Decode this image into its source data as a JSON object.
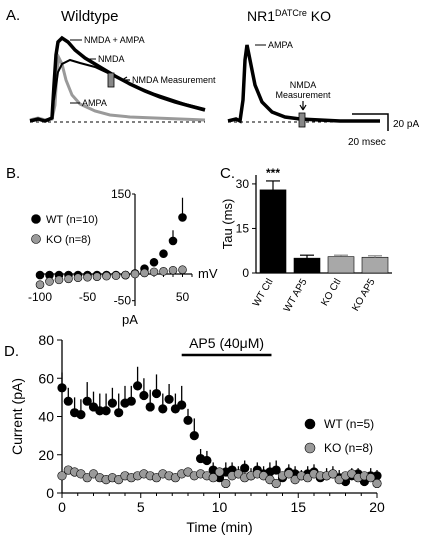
{
  "panels": {
    "a": {
      "letter": "A.",
      "wt_title": "Wildtype",
      "ko_title_main": "NR1",
      "ko_title_sup": "DATCre",
      "ko_title_end": " KO",
      "label_nmda_ampa": "NMDA + AMPA",
      "label_nmda": "NMDA",
      "label_ampa": "AMPA",
      "label_nmda_meas": "NMDA Measurement",
      "label_ko_ampa": "AMPA",
      "label_ko_nmda_1": "NMDA",
      "label_ko_nmda_2": "Measurement",
      "scale_y": "20 pA",
      "scale_x": "20 msec"
    },
    "b": {
      "letter": "B."
    },
    "c": {
      "letter": "C.",
      "significance": "***"
    },
    "d": {
      "letter": "D.",
      "drug_label": "AP5 (40μM)"
    }
  },
  "colors": {
    "wt": "#000000",
    "ko": "#9a9a9a",
    "ko_bar": "#a8a8a8"
  },
  "chart_data": [
    {
      "panel": "B",
      "type": "scatter",
      "xlabel": "mV",
      "ylabel": "pA",
      "xlim": [
        -100,
        60
      ],
      "ylim": [
        -60,
        150
      ],
      "x_ticks": [
        -100,
        -50,
        50
      ],
      "y_ticks": [
        150,
        -50
      ],
      "legend_position": "left",
      "series": [
        {
          "name": "WT (n=10)",
          "color": "#000000",
          "points": [
            {
              "x": -100,
              "y": -2,
              "err": 0
            },
            {
              "x": -90,
              "y": -2,
              "err": 0
            },
            {
              "x": -80,
              "y": -2,
              "err": 0
            },
            {
              "x": -70,
              "y": -2,
              "err": 0
            },
            {
              "x": -60,
              "y": -2,
              "err": 0
            },
            {
              "x": -50,
              "y": -2,
              "err": 0
            },
            {
              "x": -40,
              "y": -2,
              "err": 0
            },
            {
              "x": -30,
              "y": -2,
              "err": 0
            },
            {
              "x": -20,
              "y": -2,
              "err": 0
            },
            {
              "x": -10,
              "y": -2,
              "err": 0
            },
            {
              "x": 0,
              "y": 1,
              "err": 0
            },
            {
              "x": 10,
              "y": 10,
              "err": 0
            },
            {
              "x": 20,
              "y": 22,
              "err": 0
            },
            {
              "x": 30,
              "y": 38,
              "err": 0
            },
            {
              "x": 40,
              "y": 62,
              "err": 20
            },
            {
              "x": 50,
              "y": 106,
              "err": 37
            }
          ]
        },
        {
          "name": "KO (n=8)",
          "color": "#9a9a9a",
          "points": [
            {
              "x": -100,
              "y": -20,
              "err": 4
            },
            {
              "x": -90,
              "y": -14,
              "err": 4
            },
            {
              "x": -80,
              "y": -11,
              "err": 3
            },
            {
              "x": -70,
              "y": -9,
              "err": 3
            },
            {
              "x": -60,
              "y": -7,
              "err": 2
            },
            {
              "x": -50,
              "y": -6,
              "err": 2
            },
            {
              "x": -40,
              "y": -5,
              "err": 2
            },
            {
              "x": -30,
              "y": -4,
              "err": 1
            },
            {
              "x": -20,
              "y": -3,
              "err": 1
            },
            {
              "x": -10,
              "y": -2,
              "err": 1
            },
            {
              "x": 0,
              "y": 0,
              "err": 0
            },
            {
              "x": 10,
              "y": 2,
              "err": 0
            },
            {
              "x": 20,
              "y": 4,
              "err": 0
            },
            {
              "x": 30,
              "y": 5,
              "err": 0
            },
            {
              "x": 40,
              "y": 7,
              "err": 0
            },
            {
              "x": 50,
              "y": 8,
              "err": 0
            }
          ]
        }
      ]
    },
    {
      "panel": "C",
      "type": "bar",
      "ylabel": "Tau (ms)",
      "ylim": [
        0,
        33
      ],
      "y_ticks": [
        0,
        15,
        30
      ],
      "categories": [
        "WT Ctl",
        "WT AP5",
        "KO Ctl",
        "KO AP5"
      ],
      "values": [
        28,
        5,
        5.5,
        5.3
      ],
      "errors": [
        3,
        1,
        0.5,
        0.5
      ],
      "colors": [
        "#000000",
        "#000000",
        "#a8a8a8",
        "#a8a8a8"
      ],
      "annotations": [
        {
          "category": "WT Ctl",
          "text": "***"
        }
      ]
    },
    {
      "panel": "D",
      "type": "scatter",
      "xlabel": "Time (min)",
      "ylabel": "Current (pA)",
      "xlim": [
        0,
        20
      ],
      "ylim": [
        0,
        80
      ],
      "x_ticks": [
        0,
        5,
        10,
        15,
        20
      ],
      "y_ticks": [
        0,
        20,
        40,
        60,
        80
      ],
      "drug_bar": {
        "start": 7.6,
        "end": 13.3,
        "label": "AP5 (40μM)"
      },
      "legend_position": "right",
      "series": [
        {
          "name": "WT (n=5)",
          "color": "#000000",
          "points": [
            {
              "x": 0.0,
              "y": 55,
              "err": 8
            },
            {
              "x": 0.4,
              "y": 48,
              "err": 7
            },
            {
              "x": 0.8,
              "y": 42,
              "err": 8
            },
            {
              "x": 1.2,
              "y": 41,
              "err": 8
            },
            {
              "x": 1.6,
              "y": 48,
              "err": 10
            },
            {
              "x": 2.0,
              "y": 45,
              "err": 8
            },
            {
              "x": 2.4,
              "y": 43,
              "err": 9
            },
            {
              "x": 2.8,
              "y": 43,
              "err": 9
            },
            {
              "x": 3.2,
              "y": 47,
              "err": 8
            },
            {
              "x": 3.6,
              "y": 42,
              "err": 10
            },
            {
              "x": 4.0,
              "y": 47,
              "err": 9
            },
            {
              "x": 4.4,
              "y": 48,
              "err": 8
            },
            {
              "x": 4.8,
              "y": 56,
              "err": 10
            },
            {
              "x": 5.2,
              "y": 51,
              "err": 9
            },
            {
              "x": 5.6,
              "y": 45,
              "err": 9
            },
            {
              "x": 6.0,
              "y": 52,
              "err": 10
            },
            {
              "x": 6.4,
              "y": 44,
              "err": 8
            },
            {
              "x": 6.8,
              "y": 49,
              "err": 8
            },
            {
              "x": 7.2,
              "y": 44,
              "err": 8
            },
            {
              "x": 7.6,
              "y": 46,
              "err": 10
            },
            {
              "x": 8.0,
              "y": 38,
              "err": 6
            },
            {
              "x": 8.4,
              "y": 30,
              "err": 9
            },
            {
              "x": 8.8,
              "y": 18,
              "err": 5
            },
            {
              "x": 9.2,
              "y": 17,
              "err": 5
            },
            {
              "x": 9.6,
              "y": 12,
              "err": 4
            },
            {
              "x": 10.0,
              "y": 8,
              "err": 4
            },
            {
              "x": 10.4,
              "y": 11,
              "err": 5
            },
            {
              "x": 10.8,
              "y": 12,
              "err": 4
            },
            {
              "x": 11.2,
              "y": 10,
              "err": 4
            },
            {
              "x": 11.6,
              "y": 13,
              "err": 4
            },
            {
              "x": 12.0,
              "y": 9,
              "err": 4
            },
            {
              "x": 12.4,
              "y": 12,
              "err": 4
            },
            {
              "x": 12.8,
              "y": 10,
              "err": 4
            },
            {
              "x": 13.2,
              "y": 11,
              "err": 5
            },
            {
              "x": 13.6,
              "y": 12,
              "err": 5
            },
            {
              "x": 14.0,
              "y": 8,
              "err": 3
            },
            {
              "x": 14.4,
              "y": 11,
              "err": 4
            },
            {
              "x": 14.8,
              "y": 10,
              "err": 4
            },
            {
              "x": 15.2,
              "y": 9,
              "err": 3
            },
            {
              "x": 15.6,
              "y": 10,
              "err": 4
            },
            {
              "x": 16.0,
              "y": 11,
              "err": 4
            },
            {
              "x": 16.4,
              "y": 8,
              "err": 3
            },
            {
              "x": 16.8,
              "y": 9,
              "err": 4
            },
            {
              "x": 17.2,
              "y": 10,
              "err": 4
            },
            {
              "x": 17.6,
              "y": 8,
              "err": 4
            },
            {
              "x": 18.0,
              "y": 6,
              "err": 3
            },
            {
              "x": 18.4,
              "y": 9,
              "err": 4
            },
            {
              "x": 18.8,
              "y": 10,
              "err": 3
            },
            {
              "x": 19.2,
              "y": 6,
              "err": 3
            },
            {
              "x": 19.6,
              "y": 9,
              "err": 4
            },
            {
              "x": 20.0,
              "y": 9,
              "err": 3
            }
          ]
        },
        {
          "name": "KO (n=8)",
          "color": "#9a9a9a",
          "points": [
            {
              "x": 0.0,
              "y": 9,
              "err": 2
            },
            {
              "x": 0.4,
              "y": 12,
              "err": 2
            },
            {
              "x": 0.8,
              "y": 11,
              "err": 2
            },
            {
              "x": 1.2,
              "y": 10,
              "err": 2
            },
            {
              "x": 1.6,
              "y": 8,
              "err": 2
            },
            {
              "x": 2.0,
              "y": 10,
              "err": 2
            },
            {
              "x": 2.4,
              "y": 8,
              "err": 2
            },
            {
              "x": 2.8,
              "y": 7,
              "err": 2
            },
            {
              "x": 3.2,
              "y": 8,
              "err": 2
            },
            {
              "x": 3.6,
              "y": 7,
              "err": 2
            },
            {
              "x": 4.0,
              "y": 9,
              "err": 2
            },
            {
              "x": 4.4,
              "y": 8,
              "err": 2
            },
            {
              "x": 4.8,
              "y": 9,
              "err": 2
            },
            {
              "x": 5.2,
              "y": 10,
              "err": 2
            },
            {
              "x": 5.6,
              "y": 9,
              "err": 2
            },
            {
              "x": 6.0,
              "y": 8,
              "err": 2
            },
            {
              "x": 6.4,
              "y": 10,
              "err": 2
            },
            {
              "x": 6.8,
              "y": 9,
              "err": 2
            },
            {
              "x": 7.2,
              "y": 8,
              "err": 2
            },
            {
              "x": 7.6,
              "y": 10,
              "err": 2
            },
            {
              "x": 8.0,
              "y": 11,
              "err": 2
            },
            {
              "x": 8.4,
              "y": 9,
              "err": 2
            },
            {
              "x": 8.8,
              "y": 10,
              "err": 2
            },
            {
              "x": 9.2,
              "y": 9,
              "err": 2
            },
            {
              "x": 9.6,
              "y": 8,
              "err": 2
            },
            {
              "x": 10.0,
              "y": 11,
              "err": 2
            },
            {
              "x": 10.4,
              "y": 5,
              "err": 2
            },
            {
              "x": 10.8,
              "y": 9,
              "err": 2
            },
            {
              "x": 11.2,
              "y": 10,
              "err": 2
            },
            {
              "x": 11.6,
              "y": 8,
              "err": 2
            },
            {
              "x": 12.0,
              "y": 9,
              "err": 2
            },
            {
              "x": 12.4,
              "y": 10,
              "err": 2
            },
            {
              "x": 12.8,
              "y": 9,
              "err": 2
            },
            {
              "x": 13.2,
              "y": 7,
              "err": 2
            },
            {
              "x": 13.6,
              "y": 5,
              "err": 2
            },
            {
              "x": 14.0,
              "y": 9,
              "err": 2
            },
            {
              "x": 14.4,
              "y": 10,
              "err": 2
            },
            {
              "x": 14.8,
              "y": 7,
              "err": 2
            },
            {
              "x": 15.2,
              "y": 9,
              "err": 2
            },
            {
              "x": 15.6,
              "y": 8,
              "err": 2
            },
            {
              "x": 16.0,
              "y": 10,
              "err": 2
            },
            {
              "x": 16.4,
              "y": 9,
              "err": 2
            },
            {
              "x": 16.8,
              "y": 9,
              "err": 2
            },
            {
              "x": 17.2,
              "y": 10,
              "err": 2
            },
            {
              "x": 17.6,
              "y": 7,
              "err": 2
            },
            {
              "x": 18.0,
              "y": 9,
              "err": 2
            },
            {
              "x": 18.4,
              "y": 10,
              "err": 2
            },
            {
              "x": 18.8,
              "y": 8,
              "err": 2
            },
            {
              "x": 19.2,
              "y": 9,
              "err": 2
            },
            {
              "x": 19.6,
              "y": 8,
              "err": 2
            },
            {
              "x": 20.0,
              "y": 5,
              "err": 2
            }
          ]
        }
      ]
    }
  ]
}
